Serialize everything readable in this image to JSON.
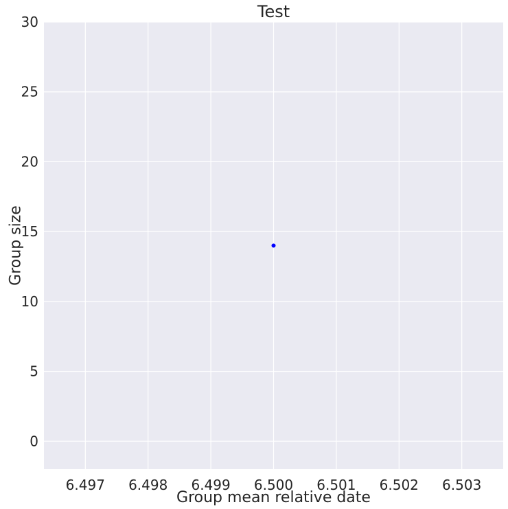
{
  "chart_data": {
    "type": "scatter",
    "title": "Test",
    "xlabel": "Group mean relative date",
    "ylabel": "Group size",
    "xlim": [
      6.49634,
      6.50366
    ],
    "ylim": [
      -2,
      30
    ],
    "xticks": [
      6.497,
      6.498,
      6.499,
      6.5,
      6.501,
      6.502,
      6.503
    ],
    "xtick_labels": [
      "6.497",
      "6.498",
      "6.499",
      "6.500",
      "6.501",
      "6.502",
      "6.503"
    ],
    "yticks": [
      0,
      5,
      10,
      15,
      20,
      25,
      30
    ],
    "ytick_labels": [
      "0",
      "5",
      "10",
      "15",
      "20",
      "25",
      "30"
    ],
    "grid": true,
    "series": [
      {
        "color": "#0000ff",
        "points": [
          {
            "x": 6.5,
            "y": 14
          }
        ]
      }
    ],
    "colors": {
      "background": "#eaeaf2",
      "grid": "#ffffff",
      "text": "#262626"
    }
  }
}
